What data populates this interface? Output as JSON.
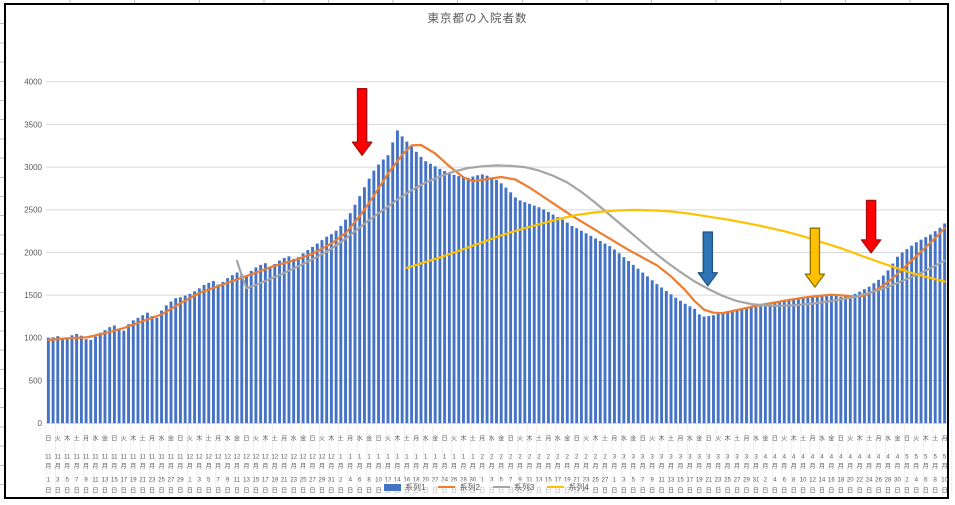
{
  "chart_data": {
    "type": "bar",
    "title": "東京都の入院者数",
    "ylim": [
      0,
      4000
    ],
    "ytick_step": 500,
    "ytick_labels": [
      "0",
      "500",
      "1000",
      "1500",
      "2000",
      "2500",
      "3000",
      "3500",
      "4000"
    ],
    "grid": true,
    "legend_position": "bottom-center",
    "x_axis_note": "daily categories Nov 1 - May 10, tick labels every 2nd day, format: weekday / month月 / day日",
    "x_tick_labels": [
      [
        "日",
        11,
        1
      ],
      [
        "火",
        11,
        3
      ],
      [
        "木",
        11,
        5
      ],
      [
        "土",
        11,
        7
      ],
      [
        "月",
        11,
        9
      ],
      [
        "水",
        11,
        11
      ],
      [
        "金",
        11,
        13
      ],
      [
        "日",
        11,
        15
      ],
      [
        "火",
        11,
        17
      ],
      [
        "木",
        11,
        19
      ],
      [
        "土",
        11,
        21
      ],
      [
        "月",
        11,
        23
      ],
      [
        "水",
        11,
        25
      ],
      [
        "金",
        11,
        27
      ],
      [
        "日",
        11,
        29
      ],
      [
        "火",
        12,
        1
      ],
      [
        "木",
        12,
        3
      ],
      [
        "土",
        12,
        5
      ],
      [
        "月",
        12,
        7
      ],
      [
        "水",
        12,
        9
      ],
      [
        "金",
        12,
        11
      ],
      [
        "日",
        12,
        13
      ],
      [
        "火",
        12,
        15
      ],
      [
        "木",
        12,
        17
      ],
      [
        "土",
        12,
        19
      ],
      [
        "月",
        12,
        21
      ],
      [
        "水",
        12,
        23
      ],
      [
        "金",
        12,
        25
      ],
      [
        "日",
        12,
        27
      ],
      [
        "火",
        12,
        29
      ],
      [
        "木",
        12,
        31
      ],
      [
        "土",
        1,
        2
      ],
      [
        "月",
        1,
        4
      ],
      [
        "水",
        1,
        6
      ],
      [
        "金",
        1,
        8
      ],
      [
        "日",
        1,
        10
      ],
      [
        "火",
        1,
        12
      ],
      [
        "木",
        1,
        14
      ],
      [
        "土",
        1,
        16
      ],
      [
        "月",
        1,
        18
      ],
      [
        "水",
        1,
        20
      ],
      [
        "金",
        1,
        22
      ],
      [
        "日",
        1,
        24
      ],
      [
        "火",
        1,
        26
      ],
      [
        "木",
        1,
        28
      ],
      [
        "土",
        1,
        30
      ],
      [
        "月",
        2,
        1
      ],
      [
        "水",
        2,
        3
      ],
      [
        "金",
        2,
        5
      ],
      [
        "日",
        2,
        7
      ],
      [
        "火",
        2,
        9
      ],
      [
        "木",
        2,
        11
      ],
      [
        "土",
        2,
        13
      ],
      [
        "月",
        2,
        15
      ],
      [
        "水",
        2,
        17
      ],
      [
        "金",
        2,
        19
      ],
      [
        "日",
        2,
        21
      ],
      [
        "火",
        2,
        23
      ],
      [
        "木",
        2,
        25
      ],
      [
        "土",
        2,
        27
      ],
      [
        "月",
        3,
        1
      ],
      [
        "水",
        3,
        3
      ],
      [
        "金",
        3,
        5
      ],
      [
        "日",
        3,
        7
      ],
      [
        "火",
        3,
        9
      ],
      [
        "木",
        3,
        11
      ],
      [
        "土",
        3,
        13
      ],
      [
        "月",
        3,
        15
      ],
      [
        "水",
        3,
        17
      ],
      [
        "金",
        3,
        19
      ],
      [
        "日",
        3,
        21
      ],
      [
        "火",
        3,
        23
      ],
      [
        "木",
        3,
        25
      ],
      [
        "土",
        3,
        27
      ],
      [
        "月",
        3,
        29
      ],
      [
        "水",
        3,
        31
      ],
      [
        "金",
        4,
        2
      ],
      [
        "日",
        4,
        4
      ],
      [
        "火",
        4,
        6
      ],
      [
        "木",
        4,
        8
      ],
      [
        "土",
        4,
        10
      ],
      [
        "月",
        4,
        12
      ],
      [
        "水",
        4,
        14
      ],
      [
        "金",
        4,
        16
      ],
      [
        "日",
        4,
        18
      ],
      [
        "火",
        4,
        20
      ],
      [
        "木",
        4,
        22
      ],
      [
        "土",
        4,
        24
      ],
      [
        "月",
        4,
        26
      ],
      [
        "水",
        4,
        28
      ],
      [
        "金",
        4,
        30
      ],
      [
        "日",
        5,
        2
      ],
      [
        "火",
        5,
        4
      ],
      [
        "木",
        5,
        6
      ],
      [
        "土",
        5,
        8
      ],
      [
        "月",
        5,
        10
      ]
    ],
    "series": [
      {
        "name": "系列1",
        "type": "bar",
        "color": "#4472C4",
        "values": [
          1000,
          1005,
          1020,
          985,
          995,
          1030,
          1045,
          1025,
          985,
          975,
          1015,
          1060,
          1090,
          1125,
          1145,
          1105,
          1085,
          1160,
          1205,
          1235,
          1265,
          1295,
          1255,
          1235,
          1320,
          1380,
          1425,
          1465,
          1475,
          1495,
          1515,
          1545,
          1580,
          1620,
          1645,
          1665,
          1625,
          1655,
          1700,
          1735,
          1765,
          1745,
          1725,
          1785,
          1825,
          1855,
          1875,
          1835,
          1865,
          1905,
          1935,
          1955,
          1925,
          1945,
          1990,
          2030,
          2065,
          2105,
          2145,
          2185,
          2215,
          2255,
          2310,
          2385,
          2460,
          2560,
          2660,
          2765,
          2865,
          2960,
          3030,
          3090,
          3140,
          3290,
          3430,
          3360,
          3300,
          3240,
          3180,
          3120,
          3070,
          3040,
          3010,
          2980,
          2955,
          2930,
          2910,
          2895,
          2885,
          2875,
          2890,
          2905,
          2915,
          2900,
          2880,
          2850,
          2810,
          2760,
          2705,
          2645,
          2610,
          2590,
          2570,
          2550,
          2530,
          2505,
          2475,
          2445,
          2415,
          2385,
          2350,
          2310,
          2285,
          2255,
          2225,
          2195,
          2165,
          2135,
          2105,
          2075,
          2035,
          1990,
          1945,
          1900,
          1855,
          1810,
          1765,
          1720,
          1675,
          1630,
          1590,
          1550,
          1510,
          1470,
          1435,
          1400,
          1370,
          1340,
          1275,
          1250,
          1255,
          1265,
          1280,
          1290,
          1300,
          1310,
          1320,
          1330,
          1340,
          1350,
          1360,
          1370,
          1385,
          1395,
          1405,
          1420,
          1430,
          1445,
          1455,
          1465,
          1475,
          1480,
          1490,
          1495,
          1500,
          1505,
          1510,
          1500,
          1480,
          1490,
          1500,
          1515,
          1540,
          1570,
          1600,
          1640,
          1680,
          1730,
          1790,
          1870,
          1950,
          2000,
          2040,
          2080,
          2120,
          2150,
          2180,
          2210,
          2250,
          2290,
          2340
        ]
      },
      {
        "name": "系列2",
        "type": "line",
        "color": "#ED7D31",
        "points": [
          [
            0,
            975
          ],
          [
            4,
            995
          ],
          [
            8,
            1005
          ],
          [
            12,
            1055
          ],
          [
            16,
            1115
          ],
          [
            20,
            1195
          ],
          [
            24,
            1275
          ],
          [
            28,
            1405
          ],
          [
            32,
            1525
          ],
          [
            36,
            1605
          ],
          [
            40,
            1685
          ],
          [
            44,
            1765
          ],
          [
            48,
            1845
          ],
          [
            52,
            1905
          ],
          [
            56,
            1985
          ],
          [
            60,
            2105
          ],
          [
            63,
            2225
          ],
          [
            66,
            2425
          ],
          [
            69,
            2665
          ],
          [
            72,
            2925
          ],
          [
            75,
            3145
          ],
          [
            77,
            3255
          ],
          [
            79,
            3260
          ],
          [
            82,
            3160
          ],
          [
            85,
            3010
          ],
          [
            88,
            2880
          ],
          [
            90,
            2835
          ],
          [
            93,
            2860
          ],
          [
            96,
            2885
          ],
          [
            99,
            2855
          ],
          [
            102,
            2760
          ],
          [
            105,
            2650
          ],
          [
            108,
            2540
          ],
          [
            111,
            2430
          ],
          [
            114,
            2330
          ],
          [
            117,
            2230
          ],
          [
            120,
            2130
          ],
          [
            123,
            2030
          ],
          [
            126,
            1940
          ],
          [
            129,
            1850
          ],
          [
            132,
            1720
          ],
          [
            135,
            1560
          ],
          [
            137,
            1430
          ],
          [
            139,
            1330
          ],
          [
            141,
            1295
          ],
          [
            143,
            1290
          ],
          [
            145,
            1315
          ],
          [
            148,
            1350
          ],
          [
            151,
            1385
          ],
          [
            154,
            1415
          ],
          [
            157,
            1445
          ],
          [
            160,
            1470
          ],
          [
            163,
            1490
          ],
          [
            166,
            1505
          ],
          [
            169,
            1495
          ],
          [
            171,
            1480
          ],
          [
            173,
            1495
          ],
          [
            175,
            1545
          ],
          [
            177,
            1615
          ],
          [
            179,
            1700
          ],
          [
            181,
            1800
          ],
          [
            183,
            1905
          ],
          [
            185,
            2010
          ],
          [
            187,
            2115
          ],
          [
            189,
            2225
          ],
          [
            190,
            2285
          ]
        ]
      },
      {
        "name": "系列3",
        "type": "line",
        "color": "#A5A5A5",
        "points": [
          [
            40,
            1900
          ],
          [
            41,
            1730
          ],
          [
            42,
            1580
          ],
          [
            44,
            1620
          ],
          [
            47,
            1690
          ],
          [
            50,
            1760
          ],
          [
            53,
            1840
          ],
          [
            56,
            1920
          ],
          [
            59,
            2010
          ],
          [
            62,
            2120
          ],
          [
            65,
            2250
          ],
          [
            68,
            2380
          ],
          [
            71,
            2500
          ],
          [
            74,
            2620
          ],
          [
            77,
            2730
          ],
          [
            80,
            2820
          ],
          [
            83,
            2890
          ],
          [
            86,
            2950
          ],
          [
            89,
            2990
          ],
          [
            92,
            3010
          ],
          [
            95,
            3020
          ],
          [
            98,
            3015
          ],
          [
            101,
            3000
          ],
          [
            104,
            2960
          ],
          [
            107,
            2900
          ],
          [
            110,
            2820
          ],
          [
            113,
            2710
          ],
          [
            116,
            2580
          ],
          [
            119,
            2440
          ],
          [
            122,
            2300
          ],
          [
            125,
            2160
          ],
          [
            128,
            2020
          ],
          [
            131,
            1890
          ],
          [
            134,
            1770
          ],
          [
            137,
            1660
          ],
          [
            140,
            1570
          ],
          [
            143,
            1490
          ],
          [
            146,
            1430
          ],
          [
            149,
            1395
          ],
          [
            152,
            1380
          ],
          [
            155,
            1375
          ],
          [
            158,
            1380
          ],
          [
            161,
            1395
          ],
          [
            164,
            1415
          ],
          [
            167,
            1440
          ],
          [
            170,
            1470
          ],
          [
            173,
            1510
          ],
          [
            176,
            1560
          ],
          [
            179,
            1620
          ],
          [
            182,
            1690
          ],
          [
            185,
            1760
          ],
          [
            188,
            1845
          ],
          [
            190,
            1905
          ]
        ]
      },
      {
        "name": "系列4",
        "type": "line",
        "color": "#FFC000",
        "points": [
          [
            76,
            1820
          ],
          [
            80,
            1890
          ],
          [
            84,
            1960
          ],
          [
            88,
            2040
          ],
          [
            92,
            2120
          ],
          [
            96,
            2200
          ],
          [
            100,
            2270
          ],
          [
            104,
            2330
          ],
          [
            108,
            2390
          ],
          [
            112,
            2440
          ],
          [
            116,
            2470
          ],
          [
            120,
            2490
          ],
          [
            124,
            2500
          ],
          [
            128,
            2495
          ],
          [
            132,
            2480
          ],
          [
            136,
            2455
          ],
          [
            140,
            2420
          ],
          [
            144,
            2385
          ],
          [
            148,
            2345
          ],
          [
            152,
            2300
          ],
          [
            156,
            2250
          ],
          [
            160,
            2190
          ],
          [
            164,
            2120
          ],
          [
            168,
            2050
          ],
          [
            172,
            1970
          ],
          [
            176,
            1890
          ],
          [
            180,
            1815
          ],
          [
            183,
            1760
          ],
          [
            186,
            1715
          ],
          [
            190,
            1660
          ]
        ]
      }
    ],
    "annotations": [
      {
        "name": "red-down-arrow-january",
        "shape": "down-arrow",
        "fill": "#FF0000",
        "stroke": "#A50F0F",
        "day": 66.5,
        "from": 3920,
        "to": 3140
      },
      {
        "name": "blue-down-arrow-march",
        "shape": "down-arrow",
        "fill": "#2E75B6",
        "stroke": "#1F5387",
        "day": 139.8,
        "from": 2240,
        "to": 1610
      },
      {
        "name": "yellow-down-arrow-april",
        "shape": "down-arrow",
        "fill": "#FFC000",
        "stroke": "#8F7000",
        "day": 162.5,
        "from": 2285,
        "to": 1595
      },
      {
        "name": "red-down-arrow-late-april",
        "shape": "down-arrow",
        "fill": "#FF0000",
        "stroke": "#A50F0F",
        "day": 174.4,
        "from": 2610,
        "to": 1995
      }
    ],
    "colors": {
      "bar": "#4472C4",
      "line2": "#ED7D31",
      "line3": "#A5A5A5",
      "line4": "#FFC000",
      "gridline": "#D9D9D9",
      "axis_text": "#595959",
      "label_separator": "#EFEFEF"
    }
  }
}
